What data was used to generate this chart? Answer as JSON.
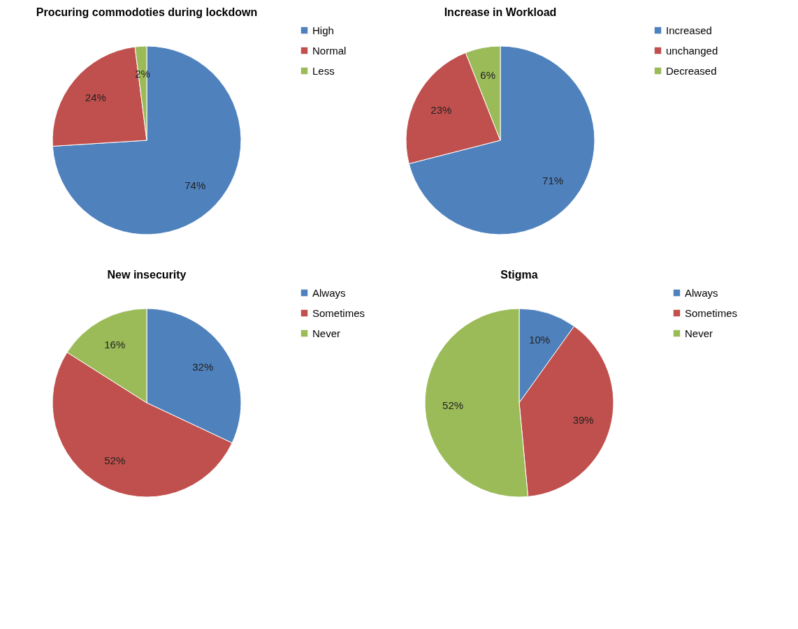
{
  "chart_data": [
    {
      "type": "pie",
      "title": "Procuring commodoties during lockdown",
      "categories": [
        "High",
        "Normal",
        "Less"
      ],
      "values": [
        74,
        24,
        2
      ],
      "value_labels": [
        "74%",
        "24%",
        "2%"
      ],
      "colors": [
        "#4f81bd",
        "#c0504d",
        "#9bbb59"
      ],
      "legend": "right"
    },
    {
      "type": "pie",
      "title": "Increase in Workload",
      "categories": [
        "Increased",
        "unchanged",
        "Decreased"
      ],
      "values": [
        71,
        23,
        6
      ],
      "value_labels": [
        "71%",
        "23%",
        "6%"
      ],
      "colors": [
        "#4f81bd",
        "#c0504d",
        "#9bbb59"
      ],
      "legend": "right"
    },
    {
      "type": "pie",
      "title": "New insecurity",
      "categories": [
        "Always",
        "Sometimes",
        "Never"
      ],
      "values": [
        32,
        52,
        16
      ],
      "value_labels": [
        "32%",
        "52%",
        "16%"
      ],
      "colors": [
        "#4f81bd",
        "#c0504d",
        "#9bbb59"
      ],
      "legend": "right"
    },
    {
      "type": "pie",
      "title": "Stigma",
      "categories": [
        "Always",
        "Sometimes",
        "Never"
      ],
      "values": [
        10,
        39,
        52
      ],
      "value_labels": [
        "10%",
        "39%",
        "52%"
      ],
      "colors": [
        "#4f81bd",
        "#c0504d",
        "#9bbb59"
      ],
      "legend": "right"
    }
  ]
}
